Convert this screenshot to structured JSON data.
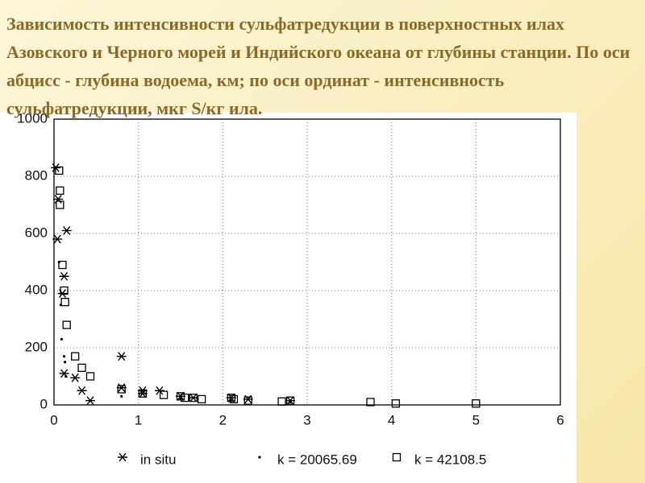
{
  "chart_data": {
    "type": "scatter",
    "title": "Зависимость интенсивности сульфатредукции в поверхностных илах Азовского и Черного морей и Индийского океана от глубины станции. По оси абцисс - глубина водоема, км; по оси ординат - интенсивность сульфатредукции, мкг S/кг ила.",
    "xlim": [
      0,
      6
    ],
    "xticks": [
      0,
      1,
      2,
      3,
      4,
      5,
      6
    ],
    "ylim": [
      0,
      1000
    ],
    "yticks": [
      0,
      200,
      400,
      600,
      800,
      1000
    ],
    "grid": true,
    "legend": "bottom",
    "series": [
      {
        "name": "in situ",
        "marker": "asterisk",
        "color": "#000000",
        "x": [
          0.02,
          0.05,
          0.04,
          0.15,
          0.1,
          0.12,
          0.12,
          0.25,
          0.33,
          0.43,
          0.8,
          0.8,
          1.05,
          1.05,
          1.25,
          1.5,
          1.65,
          2.1,
          2.3,
          2.8
        ],
        "values": [
          830,
          720,
          580,
          610,
          390,
          450,
          110,
          95,
          50,
          15,
          170,
          60,
          50,
          40,
          50,
          30,
          25,
          25,
          20,
          15
        ]
      },
      {
        "name": "k = 20065.69",
        "marker": "dot",
        "color": "#000000",
        "x": [
          0.06,
          0.08,
          0.09,
          0.12,
          0.13,
          0.14,
          0.8,
          1.5,
          2.1,
          2.8
        ],
        "values": [
          500,
          350,
          230,
          170,
          150,
          100,
          30,
          20,
          15,
          10
        ]
      },
      {
        "name": "k = 42108.5",
        "marker": "square",
        "color": "#000000",
        "x": [
          0.06,
          0.07,
          0.07,
          0.1,
          0.12,
          0.13,
          0.15,
          0.25,
          0.33,
          0.43,
          0.8,
          1.05,
          1.3,
          1.5,
          1.55,
          1.65,
          1.75,
          2.1,
          2.13,
          2.3,
          2.7,
          2.8,
          3.75,
          4.05,
          5.0
        ],
        "values": [
          820,
          750,
          700,
          490,
          400,
          360,
          280,
          170,
          130,
          100,
          55,
          40,
          35,
          30,
          25,
          25,
          20,
          25,
          20,
          15,
          12,
          15,
          10,
          5,
          5
        ]
      }
    ]
  }
}
